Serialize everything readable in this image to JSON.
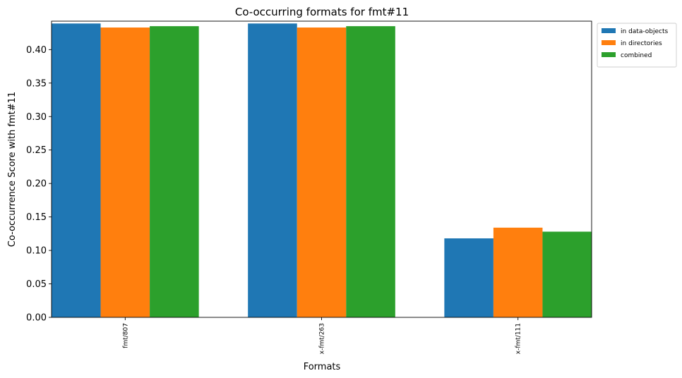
{
  "chart_data": {
    "type": "bar",
    "title": "Co-occurring formats for fmt#11",
    "xlabel": "Formats",
    "ylabel": "Co-occurrence Score with fmt#11",
    "categories": [
      "fmt/807",
      "x-fmt/263",
      "x-fmt/111"
    ],
    "ylim": [
      0,
      0.4425
    ],
    "yticks": [
      0.0,
      0.05,
      0.1,
      0.15,
      0.2,
      0.25,
      0.3,
      0.35,
      0.4
    ],
    "ytick_labels": [
      "0.00",
      "0.05",
      "0.10",
      "0.15",
      "0.20",
      "0.25",
      "0.30",
      "0.35",
      "0.40"
    ],
    "grid": false,
    "legend_position": "upper-right-outside",
    "series": [
      {
        "name": "in data-objects",
        "color": "#1f77b4",
        "values": [
          0.439,
          0.439,
          0.118
        ]
      },
      {
        "name": "in directories",
        "color": "#ff7f0e",
        "values": [
          0.433,
          0.433,
          0.134
        ]
      },
      {
        "name": "combined",
        "color": "#2ca02c",
        "values": [
          0.435,
          0.435,
          0.128
        ]
      }
    ]
  }
}
